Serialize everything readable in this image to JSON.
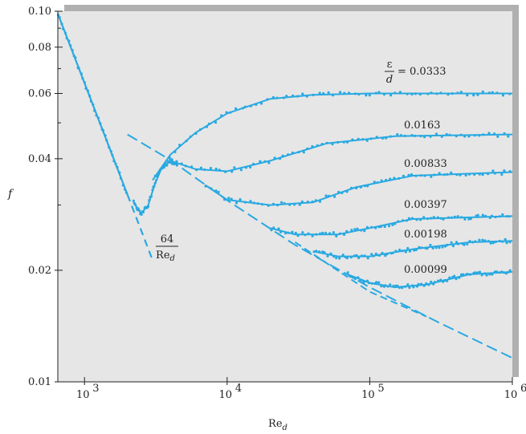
{
  "chart_data": {
    "type": "line",
    "title": "",
    "xlabel": "Re_d",
    "ylabel": "f",
    "x_scale": "log",
    "y_scale": "log",
    "xlim": [
      650,
      1000000
    ],
    "ylim": [
      0.01,
      0.1
    ],
    "x_ticks": [
      {
        "value": 1000,
        "label": "10",
        "exp": "3"
      },
      {
        "value": 10000,
        "label": "10",
        "exp": "4"
      },
      {
        "value": 100000,
        "label": "10",
        "exp": "5"
      },
      {
        "value": 1000000,
        "label": "10",
        "exp": "6"
      }
    ],
    "y_ticks": [
      {
        "value": 0.01,
        "label": "0.01"
      },
      {
        "value": 0.02,
        "label": "0.02"
      },
      {
        "value": 0.04,
        "label": "0.04"
      },
      {
        "value": 0.06,
        "label": "0.06"
      },
      {
        "value": 0.08,
        "label": "0.08"
      },
      {
        "value": 0.1,
        "label": "0.10"
      }
    ],
    "colors": {
      "curve": "#29a9e1",
      "plot_bg": "#e6e6e6",
      "shadow": "#b0b0b0",
      "axis": "#222222"
    },
    "laminar": {
      "label_num": "64",
      "label_den": "Re",
      "label_den_sub": "d",
      "points": [
        [
          650,
          0.0985
        ],
        [
          2000,
          0.032
        ],
        [
          3000,
          0.0213
        ]
      ]
    },
    "smooth_pipe": {
      "points": [
        [
          2000,
          0.0465
        ],
        [
          4000,
          0.0397
        ],
        [
          10000,
          0.0309
        ],
        [
          30000,
          0.0234
        ],
        [
          100000,
          0.018
        ],
        [
          300000,
          0.0145
        ],
        [
          1000000,
          0.0116
        ]
      ]
    },
    "smooth_pipe_2": {
      "points": [
        [
          30000,
          0.0238
        ],
        [
          100000,
          0.0175
        ],
        [
          250000,
          0.015
        ]
      ]
    },
    "transition": {
      "points": [
        [
          2200,
          0.0305
        ],
        [
          2500,
          0.0285
        ],
        [
          2800,
          0.03
        ],
        [
          3100,
          0.034
        ],
        [
          3500,
          0.038
        ],
        [
          4000,
          0.0393
        ],
        [
          4500,
          0.0388
        ]
      ]
    },
    "series": [
      {
        "name": "ε/d = 0.0333",
        "label_numerator": "ε",
        "label_denominator": "d",
        "label_value": "= 0.0333",
        "points": [
          [
            3000,
            0.035
          ],
          [
            4000,
            0.041
          ],
          [
            6000,
            0.047
          ],
          [
            10000,
            0.053
          ],
          [
            20000,
            0.058
          ],
          [
            40000,
            0.0595
          ],
          [
            100000,
            0.06
          ],
          [
            1000000,
            0.06
          ]
        ]
      },
      {
        "name": "0.0163",
        "label": "0.0163",
        "points": [
          [
            4000,
            0.0395
          ],
          [
            6000,
            0.0375
          ],
          [
            10000,
            0.037
          ],
          [
            20000,
            0.0395
          ],
          [
            50000,
            0.044
          ],
          [
            150000,
            0.046
          ],
          [
            1000000,
            0.0465
          ]
        ]
      },
      {
        "name": "0.00833",
        "label": "0.00833",
        "points": [
          [
            7000,
            0.034
          ],
          [
            10000,
            0.031
          ],
          [
            20000,
            0.03
          ],
          [
            40000,
            0.0305
          ],
          [
            80000,
            0.0335
          ],
          [
            200000,
            0.036
          ],
          [
            1000000,
            0.0368
          ]
        ]
      },
      {
        "name": "0.00397",
        "label": "0.00397",
        "points": [
          [
            20000,
            0.026
          ],
          [
            30000,
            0.025
          ],
          [
            60000,
            0.025
          ],
          [
            100000,
            0.026
          ],
          [
            200000,
            0.0275
          ],
          [
            1000000,
            0.028
          ]
        ]
      },
      {
        "name": "0.00198",
        "label": "0.00198",
        "points": [
          [
            40000,
            0.0225
          ],
          [
            60000,
            0.0218
          ],
          [
            100000,
            0.0218
          ],
          [
            200000,
            0.0228
          ],
          [
            500000,
            0.0238
          ],
          [
            1000000,
            0.024
          ]
        ]
      },
      {
        "name": "0.00099",
        "label": "0.00099",
        "points": [
          [
            70000,
            0.0195
          ],
          [
            100000,
            0.0185
          ],
          [
            150000,
            0.018
          ],
          [
            250000,
            0.0183
          ],
          [
            500000,
            0.0195
          ],
          [
            1000000,
            0.0198
          ]
        ]
      }
    ]
  }
}
